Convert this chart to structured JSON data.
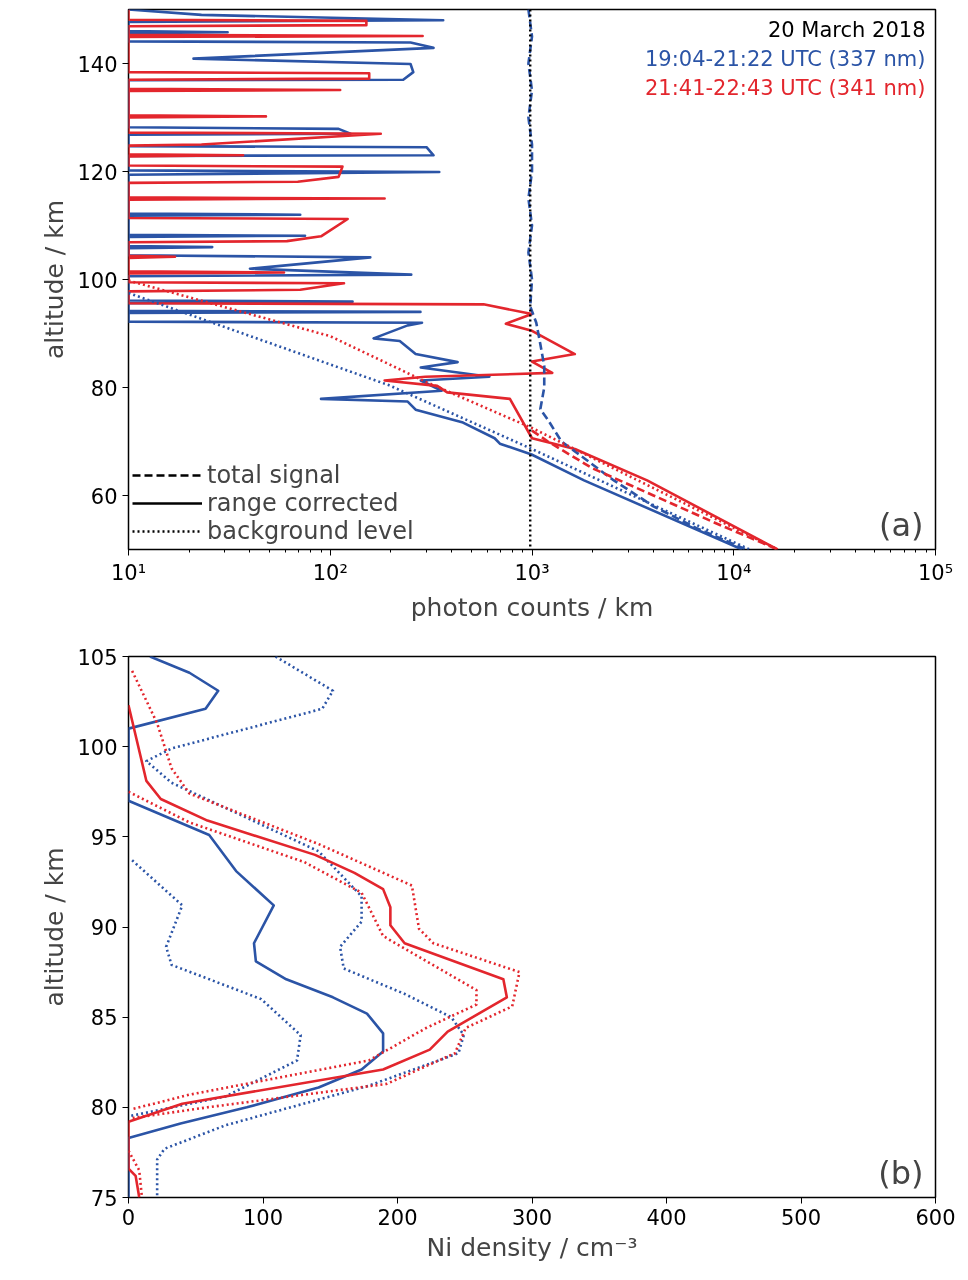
{
  "chart_data": [
    {
      "type": "line",
      "xlabel": "photon counts / km",
      "ylabel": "altitude / km",
      "legend_title": "20 March 2018",
      "legend": "top right",
      "log": "x",
      "grid": false,
      "xlim": [
        10,
        100000
      ],
      "xticks": [
        {
          "value": 10,
          "label": "10¹"
        },
        {
          "value": 100,
          "label": "10²"
        },
        {
          "value": 1000,
          "label": "10³"
        },
        {
          "value": 10000,
          "label": "10⁴"
        },
        {
          "value": 100000,
          "label": "10⁵"
        }
      ],
      "ylim": [
        50,
        150
      ],
      "yticks": [
        60,
        80,
        100,
        120,
        140
      ],
      "annotations": [
        "total signal",
        "range corrected",
        "background level",
        "(a)"
      ],
      "series": [
        {
          "name": "19:04-21:22 UTC (337 nm)",
          "color": "#2b54a6",
          "line_style": "solid",
          "x": [
            10,
            23,
            363,
            10,
            10,
            31,
            10,
            10,
            250,
            325,
            21,
            250,
            258,
            230,
            10,
            10,
            110,
            126,
            10,
            10,
            300,
            325,
            10,
            10,
            347,
            10,
            10,
            71,
            10,
            10,
            75,
            10,
            10,
            26,
            10,
            10,
            158,
            40,
            252,
            10,
            10,
            129,
            10,
            10,
            280,
            10,
            10,
            285,
            242,
            164,
            221,
            265,
            428,
            281,
            615,
            281,
            357,
            90,
            242,
            265,
            455,
            653,
            693,
            995,
            1811,
            11000
          ],
          "values": [
            150,
            149.0,
            148.0,
            147.7,
            146.0,
            145.8,
            145.6,
            144.1,
            143.9,
            142.9,
            140.9,
            139.9,
            138.4,
            137.0,
            136.9,
            128.2,
            127.9,
            127.0,
            126.8,
            124.7,
            124.5,
            123.0,
            122.9,
            120.2,
            119.9,
            119.4,
            112.2,
            112.0,
            111.8,
            108.3,
            108.1,
            107.9,
            106.2,
            106.0,
            105.8,
            104.5,
            104.1,
            102.0,
            100.9,
            100.6,
            96.1,
            95.9,
            95.6,
            94.2,
            94.0,
            93.8,
            92.2,
            92.0,
            91.5,
            89.1,
            88.6,
            86.2,
            84.7,
            83.7,
            82.0,
            81.3,
            79.4,
            77.9,
            77.4,
            75.9,
            73.5,
            70.6,
            69.6,
            67.6,
            62.8,
            50
          ]
        },
        {
          "name": "21:41-22:43 UTC (341 nm)",
          "color": "#e3262d",
          "line_style": "solid",
          "x": [
            10,
            10,
            151,
            151,
            10,
            10,
            287,
            10,
            10,
            156,
            156,
            10,
            10,
            112,
            10,
            10,
            48,
            10,
            10,
            178,
            23,
            10,
            10,
            37,
            10,
            10,
            115,
            110,
            69,
            10,
            10,
            186,
            10,
            10,
            122,
            90,
            61,
            10,
            10,
            17,
            10,
            10,
            59,
            10,
            10,
            117,
            71,
            10,
            10,
            575,
            1000,
            742,
            1000,
            1630,
            1000,
            1260,
            296,
            186,
            339,
            380,
            777,
            1000,
            1630,
            3720,
            16500
          ],
          "values": [
            150,
            148.1,
            147.9,
            147.1,
            146.9,
            145.3,
            145.1,
            144.9,
            138.4,
            138.2,
            137.2,
            137.0,
            135.3,
            135.1,
            134.9,
            130.4,
            130.2,
            130.0,
            127.2,
            127.0,
            125.0,
            124.8,
            123.2,
            123.0,
            122.8,
            121.1,
            120.9,
            119.0,
            118.1,
            117.9,
            115.2,
            115.0,
            114.8,
            111.4,
            111.2,
            108.0,
            107.1,
            106.9,
            104.4,
            104.2,
            104.0,
            101.5,
            101.3,
            101.1,
            99.5,
            99.3,
            98.1,
            97.8,
            95.6,
            95.4,
            93.6,
            91.8,
            90.5,
            86.2,
            84.8,
            82.7,
            82.0,
            81.3,
            80.3,
            79.1,
            77.9,
            70.6,
            68.6,
            62.8,
            50
          ]
        },
        {
          "color": "#2b54a6",
          "line_style": "dashed",
          "x": [
            960,
            1000,
            960,
            1000,
            960,
            1000,
            1000,
            960,
            1000,
            960,
            1000,
            980,
            1050,
            1100,
            1150,
            1150,
            1100,
            1200,
            1400,
            1800,
            2500,
            4000,
            6500,
            11500
          ],
          "values": [
            150,
            145,
            140,
            135,
            130,
            125,
            120,
            115,
            110,
            105,
            100,
            95,
            92,
            88,
            84,
            80,
            76,
            74,
            70,
            67,
            63,
            58,
            54,
            50
          ]
        },
        {
          "color": "#e3262d",
          "line_style": "dashed",
          "x": [
            1000,
            1200,
            2000,
            4000,
            8000,
            16500
          ],
          "values": [
            72,
            70,
            65,
            60,
            55,
            50
          ]
        },
        {
          "color": "#2b54a6",
          "line_style": "dotted",
          "x": [
            10,
            196,
            1000,
            12000
          ],
          "values": [
            97.5,
            80.4,
            68.6,
            50
          ]
        },
        {
          "color": "#e3262d",
          "line_style": "dotted",
          "x": [
            10,
            100,
            300,
            1000,
            16500
          ],
          "values": [
            99.8,
            89.5,
            81.0,
            72.5,
            50
          ]
        }
      ],
      "ref_lines": [
        {
          "axis": "x",
          "value": 980,
          "color": "#000000",
          "line_style": "dotted"
        }
      ]
    },
    {
      "type": "line",
      "xlabel": "Ni density / cm⁻³",
      "ylabel": "altitude / km",
      "grid": false,
      "xlim": [
        0,
        600
      ],
      "xticks": [
        0,
        100,
        200,
        300,
        400,
        500,
        600
      ],
      "ylim": [
        75,
        105
      ],
      "yticks": [
        75,
        80,
        85,
        90,
        95,
        100,
        105
      ],
      "annotations": [
        "(b)"
      ],
      "series": [
        {
          "color": "#2b54a6",
          "line_style": "solid",
          "x": [
            16,
            45.3,
            66.7,
            57.3,
            0,
            0,
            60,
            80,
            108,
            93.3,
            94.7,
            117.3,
            152,
            177.3,
            189.3,
            189.3,
            173.3,
            141.3,
            88,
            38.7,
            0,
            0
          ],
          "values": [
            105,
            104.1,
            103.1,
            102.1,
            101.0,
            97.0,
            95.1,
            93.1,
            91.2,
            89.1,
            88.1,
            87.1,
            86.1,
            85.2,
            84.1,
            83.1,
            82.1,
            81.1,
            80.0,
            79.1,
            78.3,
            75
          ]
        },
        {
          "color": "#2b54a6",
          "line_style": "dotted",
          "x": [
            109.3,
            152,
            144,
            32,
            13.3,
            32,
            141.3,
            173.3,
            173.3,
            157.3,
            160,
            205,
            240,
            249.3,
            245.3,
            178.7,
            72,
            26.7,
            21.3,
            21.3
          ],
          "values": [
            105,
            103.1,
            102.1,
            99.9,
            99.2,
            98.0,
            94.2,
            91.7,
            90.3,
            88.9,
            87.7,
            86.3,
            85.0,
            84.0,
            83.0,
            81.2,
            79.0,
            77.7,
            77.1,
            75
          ]
        },
        {
          "color": "#2b54a6",
          "line_style": "dotted",
          "x": [
            2.7,
            40,
            28,
            32,
            98.7,
            128,
            125.3,
            72,
            0
          ],
          "values": [
            93.7,
            91.2,
            88.9,
            87.9,
            86.0,
            84.0,
            82.6,
            80.6,
            79.5
          ]
        },
        {
          "color": "#e3262d",
          "line_style": "solid",
          "x": [
            0,
            13.3,
            24,
            58.7,
            138.7,
            168,
            189.3,
            194.7,
            194.7,
            205.3,
            278.7,
            281.3,
            237.3,
            224,
            189.3,
            40,
            0,
            0,
            5.3,
            8
          ],
          "values": [
            102.3,
            98.1,
            97.1,
            95.9,
            94.0,
            93.0,
            92.1,
            91.1,
            90.1,
            89.1,
            87.1,
            86.1,
            84.2,
            83.2,
            82.1,
            80.2,
            79.2,
            76.6,
            76.2,
            75
          ]
        },
        {
          "color": "#e3262d",
          "line_style": "dotted",
          "x": [
            2.7,
            21.3,
            32,
            45.3,
            141.3,
            210.7,
            216,
            226.7,
            290.7,
            285.3,
            250.7,
            242.7,
            192,
            58.7,
            2.7
          ],
          "values": [
            104.2,
            101.3,
            98.8,
            97.4,
            94.6,
            92.3,
            89.9,
            89.1,
            87.5,
            85.6,
            84.4,
            83.0,
            81.3,
            80.0,
            79.4
          ]
        },
        {
          "color": "#e3262d",
          "line_style": "dotted",
          "x": [
            0,
            45.3,
            130.7,
            173.3,
            184,
            189.3,
            258.7,
            258.7,
            221.3,
            178.7,
            45.3,
            2.7,
            null,
            0,
            8,
            10
          ],
          "values": [
            97.5,
            95.8,
            93.6,
            91.9,
            90.3,
            89.5,
            86.5,
            85.7,
            84.4,
            82.6,
            80.7,
            79.9,
            null,
            77.6,
            76.5,
            75
          ]
        }
      ]
    }
  ]
}
